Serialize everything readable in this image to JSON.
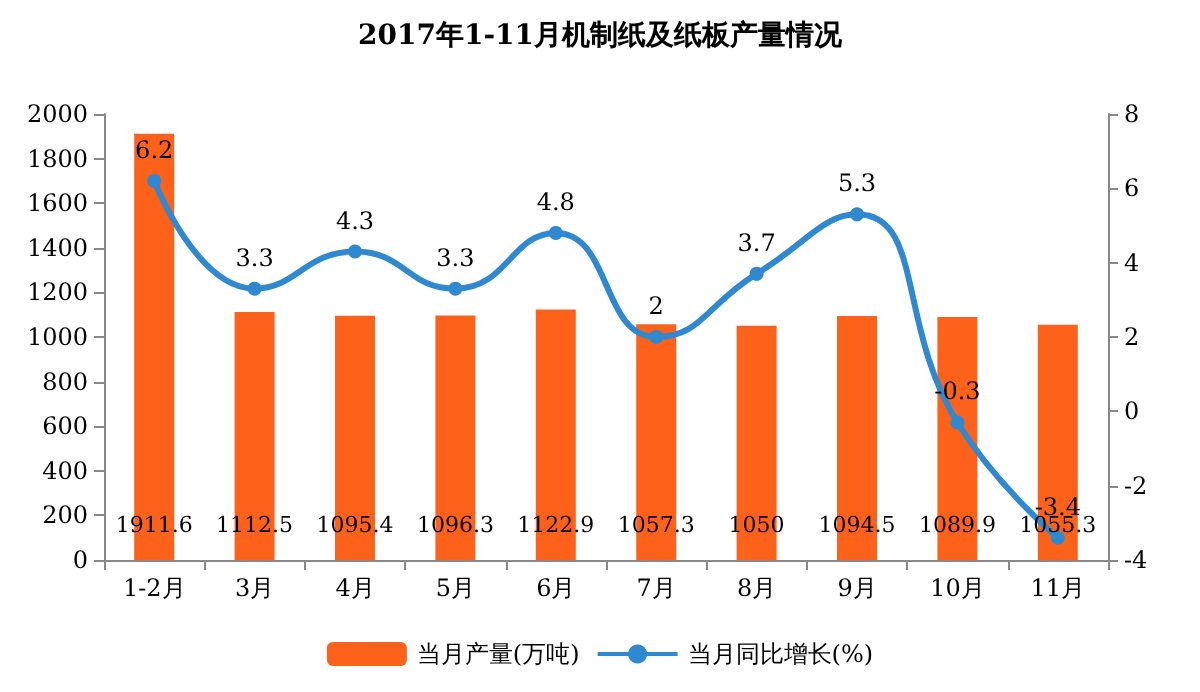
{
  "chart_data": {
    "type": "bar",
    "title": "2017年1-11月机制纸及纸板产量情况",
    "categories": [
      "1-2月",
      "3月",
      "4月",
      "5月",
      "6月",
      "7月",
      "8月",
      "9月",
      "10月",
      "11月"
    ],
    "series": [
      {
        "name": "当月产量(万吨)",
        "color": "#fe6119",
        "values": [
          1911.6,
          1112.5,
          1095.4,
          1096.3,
          1122.9,
          1057.3,
          1050,
          1094.5,
          1089.9,
          1055.3
        ]
      },
      {
        "name": "当月同比增长(%)",
        "type": "line",
        "axis": "y2",
        "color": "#2e89d1",
        "marker": "circle",
        "values": [
          6.2,
          3.3,
          4.3,
          3.3,
          4.8,
          2,
          3.7,
          5.3,
          -0.3,
          -3.4
        ]
      }
    ],
    "ylim": [
      0,
      2000
    ],
    "yticks": [
      0,
      200,
      400,
      600,
      800,
      1000,
      1200,
      1400,
      1600,
      1800,
      2000
    ],
    "y2lim": [
      -4,
      8
    ],
    "y2ticks": [
      -4,
      -2,
      0,
      2,
      4,
      6,
      8
    ],
    "data_labels": true,
    "legend": "bottom",
    "grid": false
  }
}
